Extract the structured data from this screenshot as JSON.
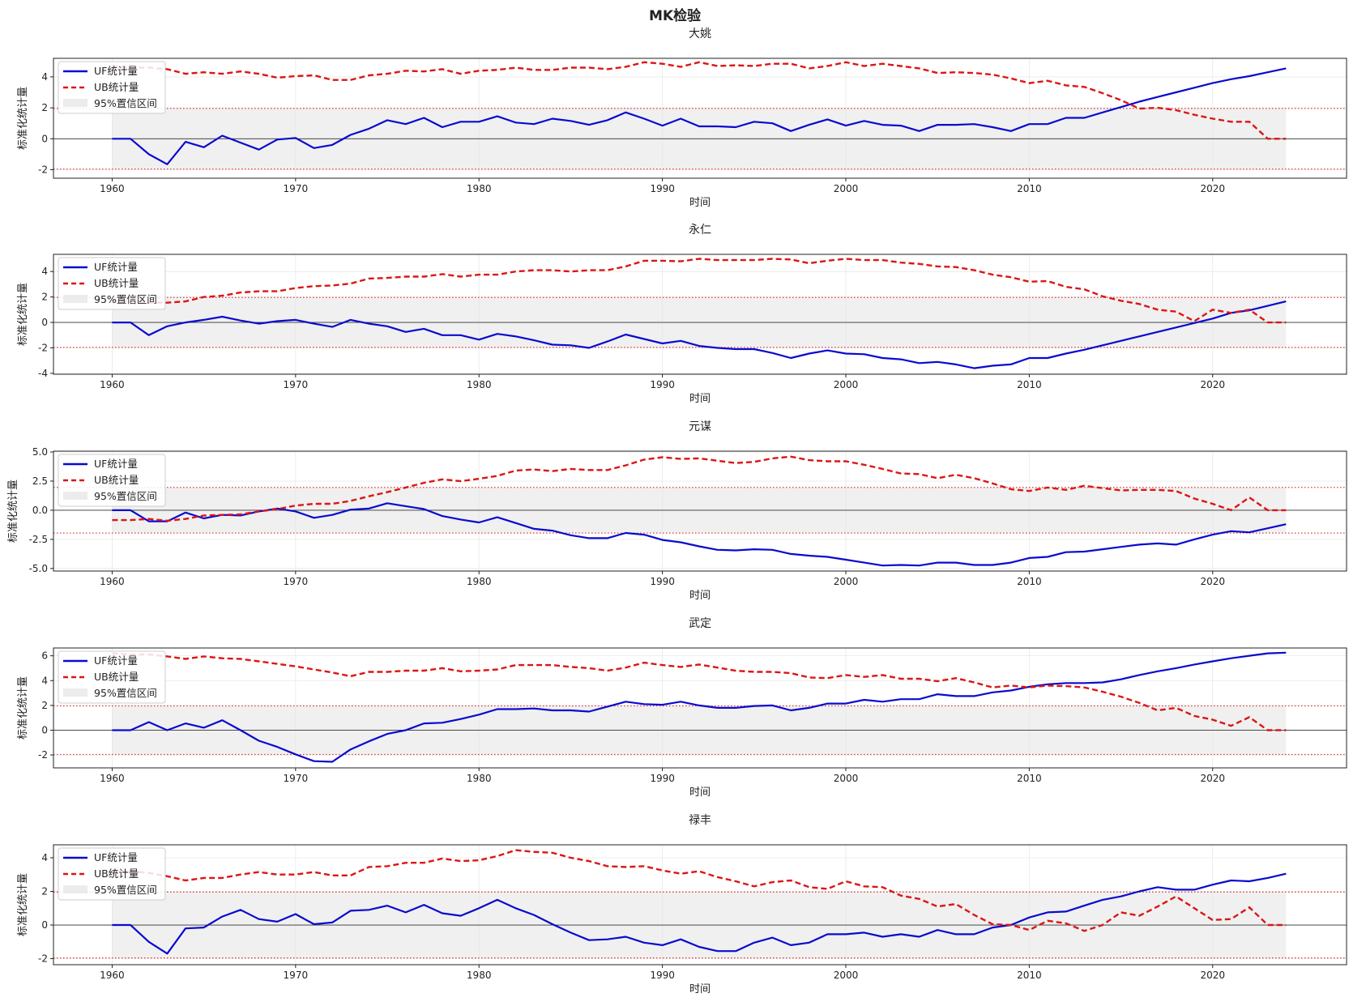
{
  "figure": {
    "title": "MK检验",
    "xlabel": "时间",
    "ylabel": "标准化统计量",
    "legend": [
      "UF统计量",
      "UB统计量",
      "95%置信区间"
    ],
    "colors": {
      "uf": "#0a0ad0",
      "ub": "#dd1515",
      "band": "#e4e4e4",
      "threshold": "#e03a3a"
    },
    "critical_value": 1.96
  },
  "chart_data": [
    {
      "type": "line",
      "title": "大姚",
      "xlabel": "时间",
      "ylabel": "标准化统计量",
      "xlim": [
        1956.8,
        2027.3
      ],
      "ylim": [
        -2.55,
        5.2
      ],
      "xticks": [
        1960,
        1970,
        1980,
        1990,
        2000,
        2010,
        2020
      ],
      "yticks": [
        -2,
        0,
        2,
        4
      ],
      "legend_placement": "upper-left",
      "grid": true,
      "x": [
        1960,
        1961,
        1962,
        1963,
        1964,
        1965,
        1966,
        1967,
        1968,
        1969,
        1970,
        1971,
        1972,
        1973,
        1974,
        1975,
        1976,
        1977,
        1978,
        1979,
        1980,
        1981,
        1982,
        1983,
        1984,
        1985,
        1986,
        1987,
        1988,
        1989,
        1990,
        1991,
        1992,
        1993,
        1994,
        1995,
        1996,
        1997,
        1998,
        1999,
        2000,
        2001,
        2002,
        2003,
        2004,
        2005,
        2006,
        2007,
        2008,
        2009,
        2010,
        2011,
        2012,
        2013,
        2014,
        2015,
        2016,
        2017,
        2018,
        2019,
        2020,
        2021,
        2022,
        2023,
        2024
      ],
      "series": [
        {
          "name": "UF统计量",
          "values": [
            0,
            0,
            -1.0,
            -1.65,
            -0.2,
            -0.55,
            0.2,
            -0.25,
            -0.7,
            -0.05,
            0.05,
            -0.6,
            -0.4,
            0.25,
            0.65,
            1.2,
            0.95,
            1.35,
            0.75,
            1.1,
            1.1,
            1.45,
            1.05,
            0.95,
            1.3,
            1.15,
            0.9,
            1.2,
            1.7,
            1.3,
            0.85,
            1.3,
            0.8,
            0.8,
            0.75,
            1.1,
            1.0,
            0.5,
            0.9,
            1.25,
            0.85,
            1.15,
            0.9,
            0.85,
            0.5,
            0.9,
            0.9,
            0.95,
            0.75,
            0.5,
            0.95,
            0.95,
            1.35,
            1.35,
            1.7,
            2.05,
            2.4,
            2.7,
            3.0,
            3.3,
            3.6,
            3.85,
            4.05,
            4.3,
            4.55
          ]
        },
        {
          "name": "UB统计量",
          "values": [
            4.7,
            4.6,
            4.6,
            4.5,
            4.2,
            4.3,
            4.2,
            4.35,
            4.2,
            3.95,
            4.05,
            4.1,
            3.8,
            3.8,
            4.1,
            4.2,
            4.4,
            4.35,
            4.5,
            4.2,
            4.4,
            4.45,
            4.6,
            4.45,
            4.45,
            4.6,
            4.6,
            4.5,
            4.65,
            4.95,
            4.85,
            4.65,
            4.95,
            4.7,
            4.75,
            4.7,
            4.85,
            4.85,
            4.55,
            4.7,
            4.95,
            4.7,
            4.85,
            4.7,
            4.55,
            4.25,
            4.3,
            4.25,
            4.15,
            3.9,
            3.6,
            3.75,
            3.45,
            3.35,
            2.95,
            2.5,
            1.95,
            2.0,
            1.85,
            1.55,
            1.3,
            1.1,
            1.1,
            0,
            0
          ]
        }
      ]
    },
    {
      "type": "line",
      "title": "永仁",
      "xlabel": "时间",
      "ylabel": "标准化统计量",
      "xlim": [
        1956.8,
        2027.3
      ],
      "ylim": [
        -4.07,
        5.35
      ],
      "xticks": [
        1960,
        1970,
        1980,
        1990,
        2000,
        2010,
        2020
      ],
      "yticks": [
        -4,
        -2,
        0,
        2,
        4
      ],
      "legend_placement": "upper-left",
      "grid": true,
      "x": [
        1960,
        1961,
        1962,
        1963,
        1964,
        1965,
        1966,
        1967,
        1968,
        1969,
        1970,
        1971,
        1972,
        1973,
        1974,
        1975,
        1976,
        1977,
        1978,
        1979,
        1980,
        1981,
        1982,
        1983,
        1984,
        1985,
        1986,
        1987,
        1988,
        1989,
        1990,
        1991,
        1992,
        1993,
        1994,
        1995,
        1996,
        1997,
        1998,
        1999,
        2000,
        2001,
        2002,
        2003,
        2004,
        2005,
        2006,
        2007,
        2008,
        2009,
        2010,
        2011,
        2012,
        2013,
        2014,
        2015,
        2016,
        2017,
        2018,
        2019,
        2020,
        2021,
        2022,
        2023,
        2024
      ],
      "series": [
        {
          "name": "UF统计量",
          "values": [
            0,
            0,
            -1.0,
            -0.3,
            0,
            0.2,
            0.45,
            0.15,
            -0.1,
            0.1,
            0.2,
            -0.1,
            -0.35,
            0.2,
            -0.1,
            -0.3,
            -0.75,
            -0.5,
            -1.0,
            -1.0,
            -1.35,
            -0.9,
            -1.1,
            -1.4,
            -1.75,
            -1.8,
            -2.0,
            -1.5,
            -0.95,
            -1.3,
            -1.65,
            -1.45,
            -1.85,
            -2.0,
            -2.1,
            -2.1,
            -2.4,
            -2.8,
            -2.45,
            -2.2,
            -2.45,
            -2.5,
            -2.8,
            -2.9,
            -3.2,
            -3.1,
            -3.3,
            -3.6,
            -3.4,
            -3.3,
            -2.8,
            -2.8,
            -2.45,
            -2.15,
            -1.8,
            -1.45,
            -1.1,
            -0.75,
            -0.4,
            -0.05,
            0.3,
            0.75,
            0.95,
            1.3,
            1.65
          ]
        },
        {
          "name": "UB统计量",
          "values": [
            1.7,
            1.7,
            1.55,
            1.55,
            1.65,
            2.0,
            2.1,
            2.35,
            2.45,
            2.45,
            2.7,
            2.85,
            2.9,
            3.05,
            3.45,
            3.5,
            3.6,
            3.6,
            3.8,
            3.6,
            3.75,
            3.75,
            4.0,
            4.1,
            4.1,
            4.0,
            4.1,
            4.1,
            4.4,
            4.85,
            4.85,
            4.8,
            5.0,
            4.9,
            4.9,
            4.9,
            5.0,
            4.95,
            4.65,
            4.85,
            5.0,
            4.9,
            4.9,
            4.7,
            4.6,
            4.4,
            4.35,
            4.1,
            3.75,
            3.55,
            3.2,
            3.25,
            2.8,
            2.6,
            2.05,
            1.7,
            1.45,
            1.0,
            0.85,
            0.1,
            1.0,
            0.75,
            1.0,
            0,
            0
          ]
        }
      ]
    },
    {
      "type": "line",
      "title": "元谋",
      "xlabel": "时间",
      "ylabel": "标准化统计量",
      "xlim": [
        1956.8,
        2027.3
      ],
      "ylim": [
        -5.22,
        5.07
      ],
      "xticks": [
        1960,
        1970,
        1980,
        1990,
        2000,
        2010,
        2020
      ],
      "yticks": [
        -5.0,
        -2.5,
        0.0,
        2.5,
        5.0
      ],
      "ytick_labels": [
        "-5.0",
        "-2.5",
        "0.0",
        "2.5",
        "5.0"
      ],
      "legend_placement": "upper-left",
      "grid": true,
      "x": [
        1960,
        1961,
        1962,
        1963,
        1964,
        1965,
        1966,
        1967,
        1968,
        1969,
        1970,
        1971,
        1972,
        1973,
        1974,
        1975,
        1976,
        1977,
        1978,
        1979,
        1980,
        1981,
        1982,
        1983,
        1984,
        1985,
        1986,
        1987,
        1988,
        1989,
        1990,
        1991,
        1992,
        1993,
        1994,
        1995,
        1996,
        1997,
        1998,
        1999,
        2000,
        2001,
        2002,
        2003,
        2004,
        2005,
        2006,
        2007,
        2008,
        2009,
        2010,
        2011,
        2012,
        2013,
        2014,
        2015,
        2016,
        2017,
        2018,
        2019,
        2020,
        2021,
        2022,
        2023,
        2024
      ],
      "series": [
        {
          "name": "UF统计量",
          "values": [
            0,
            0,
            -0.95,
            -0.95,
            -0.2,
            -0.7,
            -0.4,
            -0.45,
            -0.1,
            0.15,
            -0.1,
            -0.65,
            -0.4,
            0.05,
            0.15,
            0.6,
            0.35,
            0.1,
            -0.5,
            -0.8,
            -1.05,
            -0.6,
            -1.1,
            -1.6,
            -1.75,
            -2.15,
            -2.4,
            -2.4,
            -1.95,
            -2.1,
            -2.55,
            -2.75,
            -3.1,
            -3.4,
            -3.45,
            -3.35,
            -3.4,
            -3.75,
            -3.9,
            -4.0,
            -4.25,
            -4.5,
            -4.75,
            -4.7,
            -4.75,
            -4.5,
            -4.5,
            -4.7,
            -4.7,
            -4.5,
            -4.1,
            -4.0,
            -3.6,
            -3.55,
            -3.35,
            -3.15,
            -2.95,
            -2.85,
            -2.95,
            -2.5,
            -2.1,
            -1.8,
            -1.9,
            -1.55,
            -1.2
          ]
        },
        {
          "name": "UB统计量",
          "values": [
            -0.85,
            -0.85,
            -0.75,
            -0.9,
            -0.75,
            -0.45,
            -0.4,
            -0.35,
            -0.1,
            0.1,
            0.4,
            0.55,
            0.55,
            0.8,
            1.2,
            1.55,
            1.95,
            2.35,
            2.65,
            2.5,
            2.7,
            2.95,
            3.4,
            3.5,
            3.35,
            3.55,
            3.45,
            3.45,
            3.85,
            4.35,
            4.55,
            4.4,
            4.45,
            4.25,
            4.05,
            4.15,
            4.45,
            4.6,
            4.3,
            4.2,
            4.2,
            3.9,
            3.55,
            3.15,
            3.1,
            2.75,
            3.05,
            2.75,
            2.3,
            1.8,
            1.65,
            1.95,
            1.75,
            2.1,
            1.9,
            1.7,
            1.75,
            1.75,
            1.65,
            1.0,
            0.55,
            0.0,
            1.1,
            0,
            0
          ]
        }
      ]
    },
    {
      "type": "line",
      "title": "武定",
      "xlabel": "时间",
      "ylabel": "标准化统计量",
      "xlim": [
        1956.8,
        2027.3
      ],
      "ylim": [
        -3.04,
        6.63
      ],
      "xticks": [
        1960,
        1970,
        1980,
        1990,
        2000,
        2010,
        2020
      ],
      "yticks": [
        -2,
        0,
        2,
        4,
        6
      ],
      "legend_placement": "upper-left",
      "grid": true,
      "x": [
        1960,
        1961,
        1962,
        1963,
        1964,
        1965,
        1966,
        1967,
        1968,
        1969,
        1970,
        1971,
        1972,
        1973,
        1974,
        1975,
        1976,
        1977,
        1978,
        1979,
        1980,
        1981,
        1982,
        1983,
        1984,
        1985,
        1986,
        1987,
        1988,
        1989,
        1990,
        1991,
        1992,
        1993,
        1994,
        1995,
        1996,
        1997,
        1998,
        1999,
        2000,
        2001,
        2002,
        2003,
        2004,
        2005,
        2006,
        2007,
        2008,
        2009,
        2010,
        2011,
        2012,
        2013,
        2014,
        2015,
        2016,
        2017,
        2018,
        2019,
        2020,
        2021,
        2022,
        2023,
        2024
      ],
      "series": [
        {
          "name": "UF统计量",
          "values": [
            0,
            0,
            0.65,
            0,
            0.55,
            0.2,
            0.8,
            0,
            -0.85,
            -1.35,
            -1.95,
            -2.5,
            -2.55,
            -1.55,
            -0.9,
            -0.3,
            0,
            0.55,
            0.6,
            0.9,
            1.25,
            1.7,
            1.7,
            1.75,
            1.6,
            1.6,
            1.5,
            1.9,
            2.3,
            2.1,
            2.05,
            2.3,
            2.0,
            1.8,
            1.8,
            1.95,
            2.0,
            1.6,
            1.8,
            2.15,
            2.15,
            2.45,
            2.3,
            2.5,
            2.5,
            2.9,
            2.75,
            2.75,
            3.05,
            3.2,
            3.5,
            3.7,
            3.8,
            3.8,
            3.85,
            4.1,
            4.45,
            4.75,
            5.0,
            5.3,
            5.55,
            5.8,
            6.0,
            6.2,
            6.25
          ]
        },
        {
          "name": "UB统计量",
          "values": [
            6.2,
            6.1,
            6.1,
            5.95,
            5.75,
            5.95,
            5.8,
            5.75,
            5.55,
            5.35,
            5.15,
            4.9,
            4.65,
            4.35,
            4.7,
            4.7,
            4.8,
            4.8,
            5.0,
            4.75,
            4.8,
            4.9,
            5.25,
            5.25,
            5.25,
            5.1,
            5.0,
            4.8,
            5.05,
            5.45,
            5.25,
            5.1,
            5.3,
            5.05,
            4.8,
            4.7,
            4.7,
            4.6,
            4.25,
            4.2,
            4.45,
            4.3,
            4.45,
            4.15,
            4.15,
            3.95,
            4.2,
            3.85,
            3.45,
            3.6,
            3.45,
            3.6,
            3.55,
            3.45,
            3.1,
            2.7,
            2.2,
            1.6,
            1.8,
            1.15,
            0.85,
            0.35,
            1.05,
            0,
            0
          ]
        }
      ]
    },
    {
      "type": "line",
      "title": "禄丰",
      "xlabel": "时间",
      "ylabel": "标准化统计量",
      "xlim": [
        1956.8,
        2027.3
      ],
      "ylim": [
        -2.36,
        4.77
      ],
      "xticks": [
        1960,
        1970,
        1980,
        1990,
        2000,
        2010,
        2020
      ],
      "yticks": [
        -2,
        0,
        2,
        4
      ],
      "legend_placement": "upper-left",
      "grid": true,
      "x": [
        1960,
        1961,
        1962,
        1963,
        1964,
        1965,
        1966,
        1967,
        1968,
        1969,
        1970,
        1971,
        1972,
        1973,
        1974,
        1975,
        1976,
        1977,
        1978,
        1979,
        1980,
        1981,
        1982,
        1983,
        1984,
        1985,
        1986,
        1987,
        1988,
        1989,
        1990,
        1991,
        1992,
        1993,
        1994,
        1995,
        1996,
        1997,
        1998,
        1999,
        2000,
        2001,
        2002,
        2003,
        2004,
        2005,
        2006,
        2007,
        2008,
        2009,
        2010,
        2011,
        2012,
        2013,
        2014,
        2015,
        2016,
        2017,
        2018,
        2019,
        2020,
        2021,
        2022,
        2023,
        2024
      ],
      "series": [
        {
          "name": "UF统计量",
          "values": [
            0,
            0,
            -1.0,
            -1.7,
            -0.2,
            -0.15,
            0.5,
            0.9,
            0.35,
            0.2,
            0.65,
            0.05,
            0.15,
            0.85,
            0.9,
            1.15,
            0.75,
            1.2,
            0.7,
            0.55,
            1.0,
            1.5,
            1.0,
            0.6,
            0.05,
            -0.45,
            -0.9,
            -0.85,
            -0.7,
            -1.05,
            -1.2,
            -0.85,
            -1.3,
            -1.55,
            -1.55,
            -1.05,
            -0.75,
            -1.2,
            -1.05,
            -0.55,
            -0.55,
            -0.45,
            -0.7,
            -0.55,
            -0.7,
            -0.3,
            -0.55,
            -0.55,
            -0.15,
            0.0,
            0.45,
            0.75,
            0.8,
            1.15,
            1.5,
            1.7,
            2.0,
            2.25,
            2.1,
            2.1,
            2.4,
            2.65,
            2.6,
            2.8,
            3.05
          ]
        },
        {
          "name": "UB统计量",
          "values": [
            3.2,
            3.2,
            3.1,
            2.9,
            2.65,
            2.8,
            2.8,
            3.0,
            3.15,
            3.0,
            3.0,
            3.15,
            2.95,
            2.95,
            3.45,
            3.5,
            3.7,
            3.7,
            3.95,
            3.8,
            3.85,
            4.1,
            4.45,
            4.35,
            4.3,
            4.0,
            3.8,
            3.5,
            3.45,
            3.5,
            3.25,
            3.05,
            3.2,
            2.85,
            2.6,
            2.3,
            2.55,
            2.65,
            2.25,
            2.15,
            2.6,
            2.3,
            2.25,
            1.75,
            1.55,
            1.1,
            1.25,
            0.6,
            0.05,
            0.0,
            -0.3,
            0.25,
            0.1,
            -0.35,
            0.0,
            0.75,
            0.55,
            1.1,
            1.7,
            1.0,
            0.3,
            0.35,
            1.05,
            0,
            0
          ]
        }
      ]
    }
  ]
}
